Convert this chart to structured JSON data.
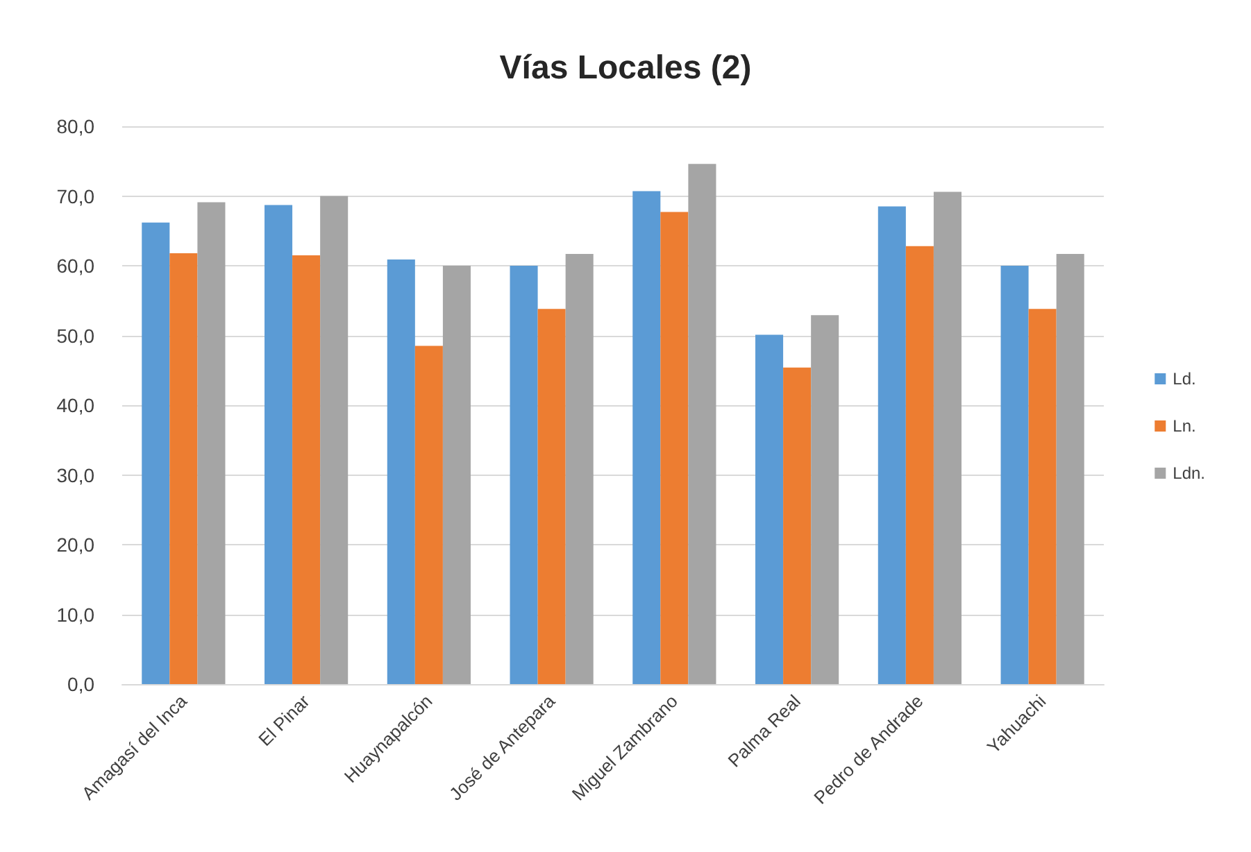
{
  "chart_data": {
    "type": "bar",
    "title": "Vías Locales (2)",
    "categories": [
      "Amagasí del Inca",
      "El Pinar",
      "Huaynapalcón",
      "José de Antepara",
      "Miguel Zambrano",
      "Palma Real",
      "Pedro de Andrade",
      "Yahuachi"
    ],
    "series": [
      {
        "name": "Ld.",
        "color": "#5b9bd5",
        "values": [
          66.2,
          68.7,
          60.9,
          60.0,
          70.7,
          50.1,
          68.5,
          60.0
        ]
      },
      {
        "name": "Ln.",
        "color": "#ed7d31",
        "values": [
          61.8,
          61.5,
          48.5,
          53.8,
          67.7,
          45.4,
          62.8,
          53.8
        ]
      },
      {
        "name": "Ldn.",
        "color": "#a5a5a5",
        "values": [
          69.1,
          70.0,
          60.0,
          61.7,
          74.6,
          52.9,
          70.6,
          61.7
        ]
      }
    ],
    "ylim": [
      0,
      80
    ],
    "yticks": [
      {
        "value": 0,
        "label": "0,0"
      },
      {
        "value": 10,
        "label": "10,0"
      },
      {
        "value": 20,
        "label": "20,0"
      },
      {
        "value": 30,
        "label": "30,0"
      },
      {
        "value": 40,
        "label": "40,0"
      },
      {
        "value": 50,
        "label": "50,0"
      },
      {
        "value": 60,
        "label": "60,0"
      },
      {
        "value": 70,
        "label": "70,0"
      },
      {
        "value": 80,
        "label": "80,0"
      }
    ],
    "grid": "y",
    "legend": "right"
  }
}
